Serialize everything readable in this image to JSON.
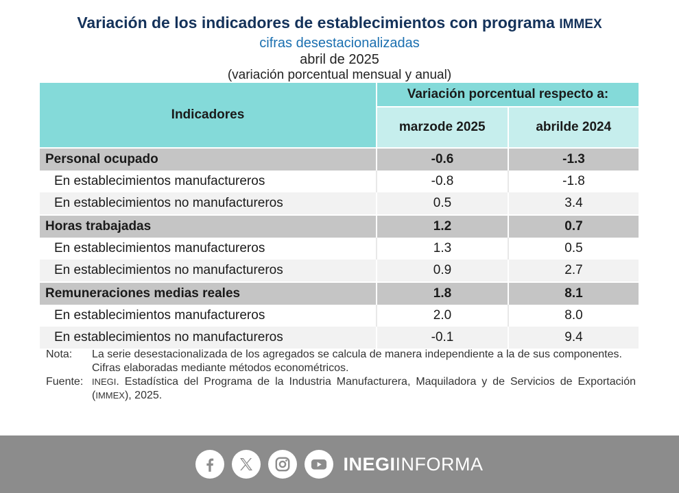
{
  "title": {
    "main": "Variación de los indicadores de establecimientos con programa",
    "program": "IMMEX",
    "subtitle": "cifras desestacionalizadas",
    "date": "abril de 2025",
    "note": "(variación porcentual mensual y anual)"
  },
  "table": {
    "header_indicators": "Indicadores",
    "header_group": "Variación porcentual respecto a:",
    "col1": {
      "line1": "marzo",
      "line2": "de 2025"
    },
    "col2": {
      "line1": "abril",
      "line2": "de 2024"
    },
    "rows": [
      {
        "label": "Personal ocupado",
        "monthly": "-0.6",
        "annual": "-1.3"
      },
      {
        "label": "En establecimientos manufactureros",
        "monthly": "-0.8",
        "annual": "-1.8"
      },
      {
        "label": "En establecimientos no manufactureros",
        "monthly": "0.5",
        "annual": "3.4"
      },
      {
        "label": "Horas trabajadas",
        "monthly": "1.2",
        "annual": "0.7"
      },
      {
        "label": "En establecimientos manufactureros",
        "monthly": "1.3",
        "annual": "0.5"
      },
      {
        "label": "En establecimientos no manufactureros",
        "monthly": "0.9",
        "annual": "2.7"
      },
      {
        "label": "Remuneraciones medias reales",
        "monthly": "1.8",
        "annual": "8.1"
      },
      {
        "label": "En establecimientos manufactureros",
        "monthly": "2.0",
        "annual": "8.0"
      },
      {
        "label": "En establecimientos no manufactureros",
        "monthly": "-0.1",
        "annual": "9.4"
      }
    ]
  },
  "notes": {
    "nota_label": "Nota:",
    "nota_text": "La serie desestacionalizada de los agregados se calcula de manera independiente a la de sus componentes.",
    "nota_text2": "Cifras elaboradas mediante métodos econométricos.",
    "fuente_label": "Fuente:",
    "fuente_org": "INEGI",
    "fuente_text1": ". Estadística del Programa de la Industria Manufacturera, Maquiladora y de Servicios de Exportación (",
    "fuente_prog": "IMMEX",
    "fuente_text2": "), 2025."
  },
  "footer": {
    "brand_bold": "INEGI",
    "brand_light": "INFORMA",
    "icons": [
      "facebook-icon",
      "x-icon",
      "instagram-icon",
      "youtube-icon"
    ],
    "bg_color": "#8c8c8c"
  }
}
